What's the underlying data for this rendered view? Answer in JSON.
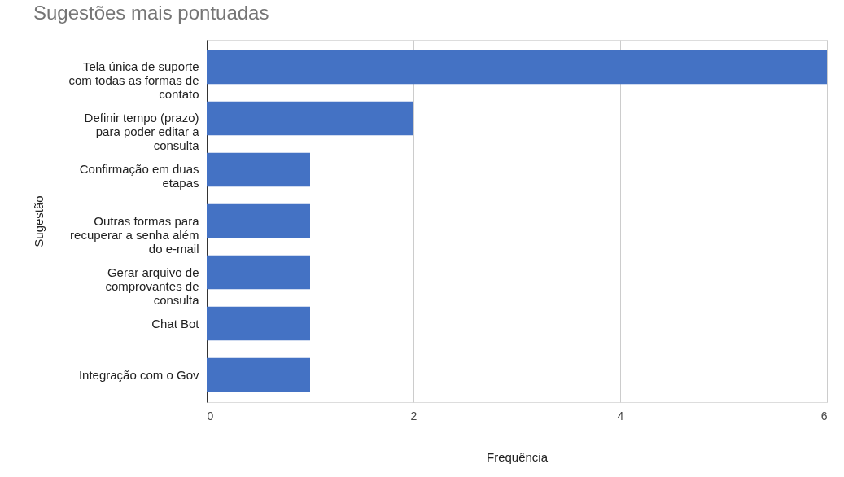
{
  "chart_data": {
    "type": "bar",
    "orientation": "horizontal",
    "title": "Sugestões mais pontuadas",
    "xlabel": "Frequência",
    "ylabel": "Sugestão",
    "categories": [
      "Tela única de suporte com todas as formas de contato",
      "Definir tempo (prazo) para poder editar a consulta",
      "Confirmação em duas etapas",
      "Outras formas para recuperar a senha além do e-mail",
      "Gerar arquivo de comprovantes de consulta",
      "Chat Bot",
      "Integração com o Gov"
    ],
    "values": [
      6,
      2,
      1,
      1,
      1,
      1,
      1
    ],
    "color": "#4472c4",
    "xlim": [
      0,
      6
    ],
    "xticks": [
      0,
      2,
      4,
      6
    ],
    "grid": "x"
  }
}
